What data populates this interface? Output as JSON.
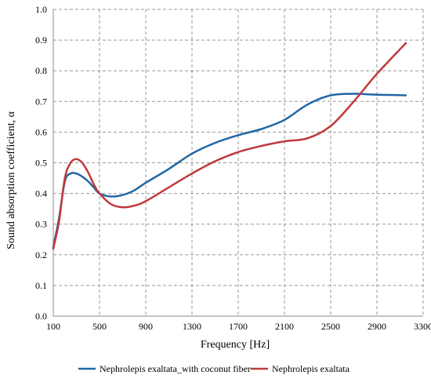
{
  "chart_data": {
    "type": "line",
    "xlabel": "Frequency [Hz]",
    "ylabel": "Sound absorption coefficient, α",
    "xlim": [
      100,
      3300
    ],
    "ylim": [
      0,
      1.0
    ],
    "xticks": [
      "100",
      "500",
      "900",
      "1300",
      "1700",
      "2100",
      "2500",
      "2900",
      "3300"
    ],
    "yticks": [
      "0.0",
      "0.1",
      "0.2",
      "0.3",
      "0.4",
      "0.5",
      "0.6",
      "0.7",
      "0.8",
      "0.9",
      "1.0"
    ],
    "grid": true,
    "legend_position": "bottom",
    "series": [
      {
        "name": "Nephrolepis exaltata_with coconut fiber",
        "color": "#2166a5",
        "x": [
          100,
          150,
          200,
          250,
          300,
          350,
          400,
          450,
          500,
          600,
          700,
          800,
          900,
          1100,
          1300,
          1500,
          1700,
          1900,
          2100,
          2300,
          2500,
          2700,
          2900,
          3150
        ],
        "y": [
          0.225,
          0.32,
          0.44,
          0.465,
          0.465,
          0.455,
          0.44,
          0.42,
          0.4,
          0.39,
          0.395,
          0.41,
          0.435,
          0.48,
          0.53,
          0.565,
          0.59,
          0.61,
          0.64,
          0.69,
          0.72,
          0.725,
          0.722,
          0.72
        ]
      },
      {
        "name": "Nephrolepis exaltata",
        "color": "#c0393b",
        "x": [
          100,
          150,
          200,
          250,
          300,
          350,
          400,
          450,
          500,
          600,
          700,
          800,
          900,
          1100,
          1300,
          1500,
          1700,
          1900,
          2100,
          2300,
          2500,
          2700,
          2900,
          3150
        ],
        "y": [
          0.22,
          0.31,
          0.45,
          0.5,
          0.512,
          0.5,
          0.47,
          0.43,
          0.4,
          0.365,
          0.355,
          0.36,
          0.375,
          0.42,
          0.465,
          0.505,
          0.535,
          0.555,
          0.57,
          0.58,
          0.62,
          0.7,
          0.79,
          0.89
        ]
      }
    ]
  }
}
